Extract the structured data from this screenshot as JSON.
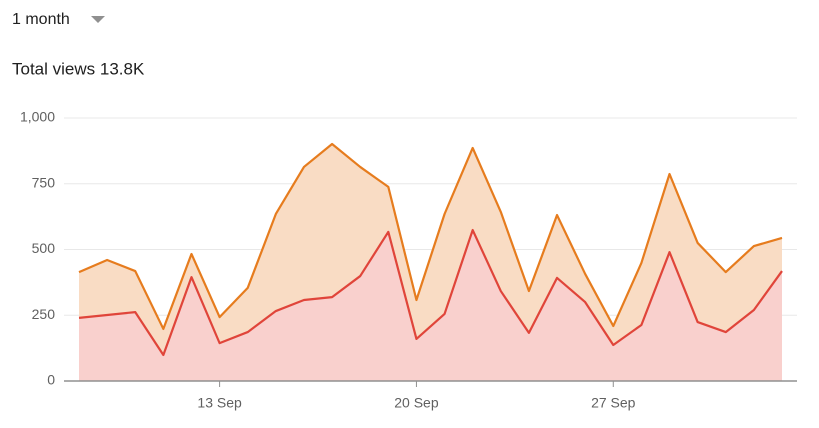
{
  "range_selector": "1 month",
  "chart_data": {
    "type": "area",
    "title": "Total views 13.8K",
    "categories": [
      null,
      null,
      null,
      null,
      null,
      "13 Sep",
      null,
      null,
      null,
      null,
      null,
      null,
      "20 Sep",
      null,
      null,
      null,
      null,
      null,
      null,
      "27 Sep",
      null,
      null,
      null,
      null,
      null,
      null
    ],
    "series": [
      {
        "color": "#e67c1e",
        "fill": "#f9dcc4",
        "values": [
          414,
          460,
          418,
          198,
          483,
          243,
          354,
          635,
          814,
          901,
          814,
          738,
          308,
          635,
          886,
          643,
          342,
          631,
          407,
          209,
          449,
          787,
          525,
          414,
          513,
          544
        ]
      },
      {
        "color": "#e0453a",
        "fill": "#f9d0cd",
        "values": [
          240,
          251,
          262,
          99,
          395,
          144,
          186,
          266,
          308,
          319,
          399,
          567,
          160,
          255,
          574,
          342,
          183,
          392,
          300,
          137,
          213,
          490,
          224,
          186,
          270,
          418
        ]
      }
    ],
    "ylim": [
      0,
      1000
    ],
    "yticks": [
      0,
      250,
      500,
      750,
      {
        "value": 1000,
        "label": "1,000"
      }
    ],
    "grid": true
  }
}
